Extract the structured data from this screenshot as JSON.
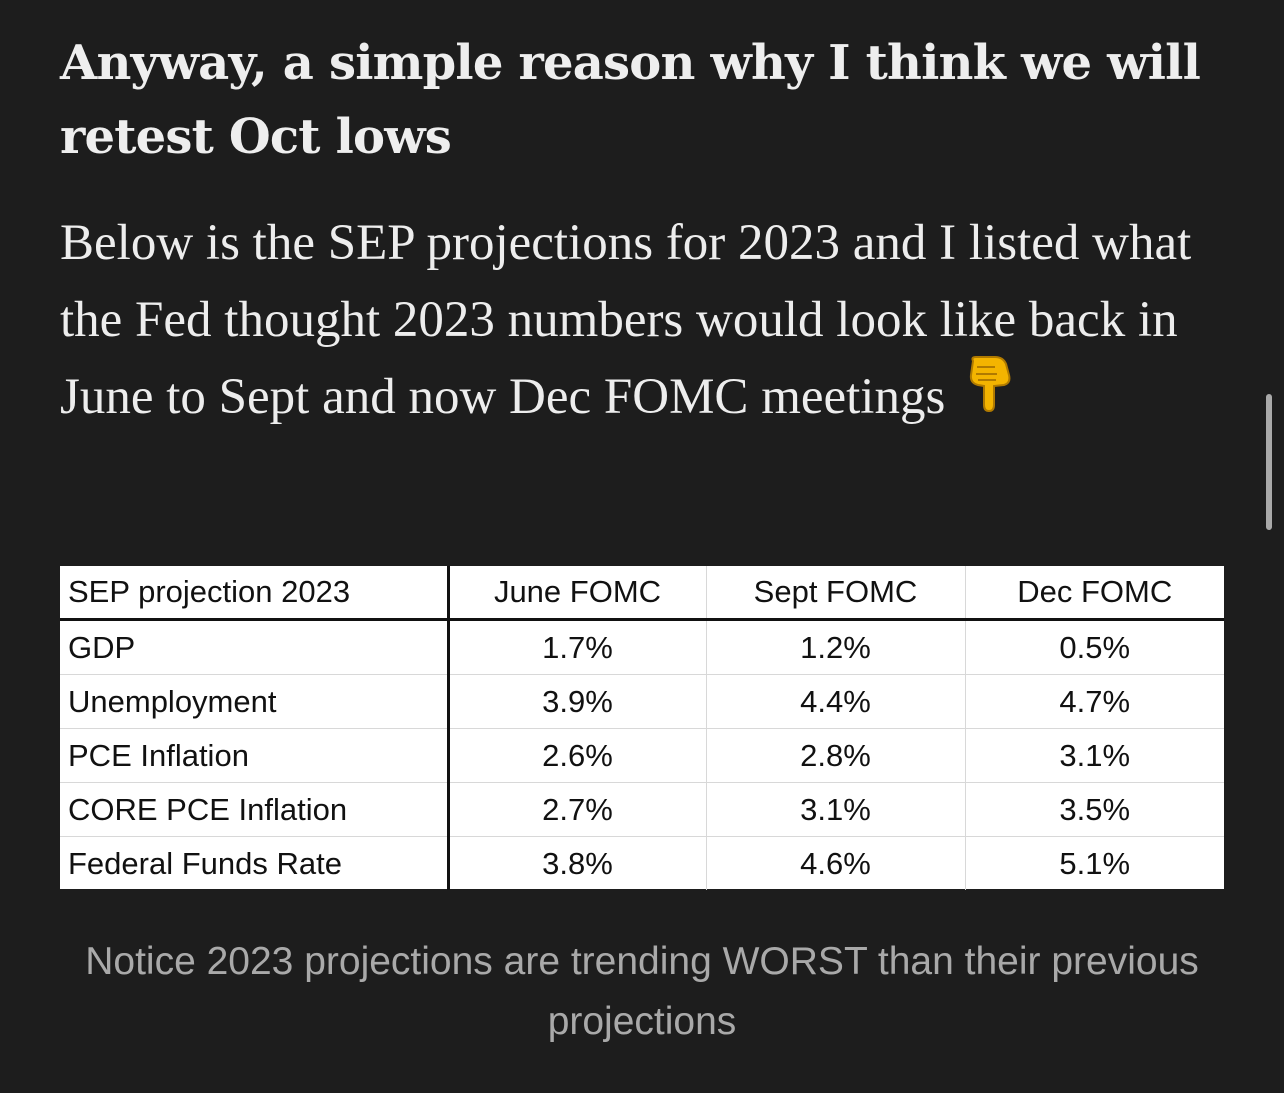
{
  "article": {
    "heading": "Anyway, a simple reason why I think we will retest Oct lows",
    "paragraph": "Below is the SEP projections for 2023 and I listed what the Fed thought 2023 numbers would look like back in June to Sept and now Dec FOMC meetings",
    "paragraph_emoji": "pointing-down-hand-icon",
    "caption": "Notice 2023 projections are trending WORST than their previous projections"
  },
  "table": {
    "headers": [
      "SEP projection 2023",
      "June FOMC",
      "Sept FOMC",
      "Dec FOMC"
    ],
    "rows": [
      [
        "GDP",
        "1.7%",
        "1.2%",
        "0.5%"
      ],
      [
        "Unemployment",
        "3.9%",
        "4.4%",
        "4.7%"
      ],
      [
        "PCE Inflation",
        "2.6%",
        "2.8%",
        "3.1%"
      ],
      [
        "CORE PCE Inflation",
        "2.7%",
        "3.1%",
        "3.5%"
      ],
      [
        "Federal Funds Rate",
        "3.8%",
        "4.6%",
        "5.1%"
      ]
    ]
  },
  "colors": {
    "background": "#1d1d1d",
    "text": "#ececec",
    "caption": "#a9a9a9",
    "emoji": "#f4b400"
  }
}
